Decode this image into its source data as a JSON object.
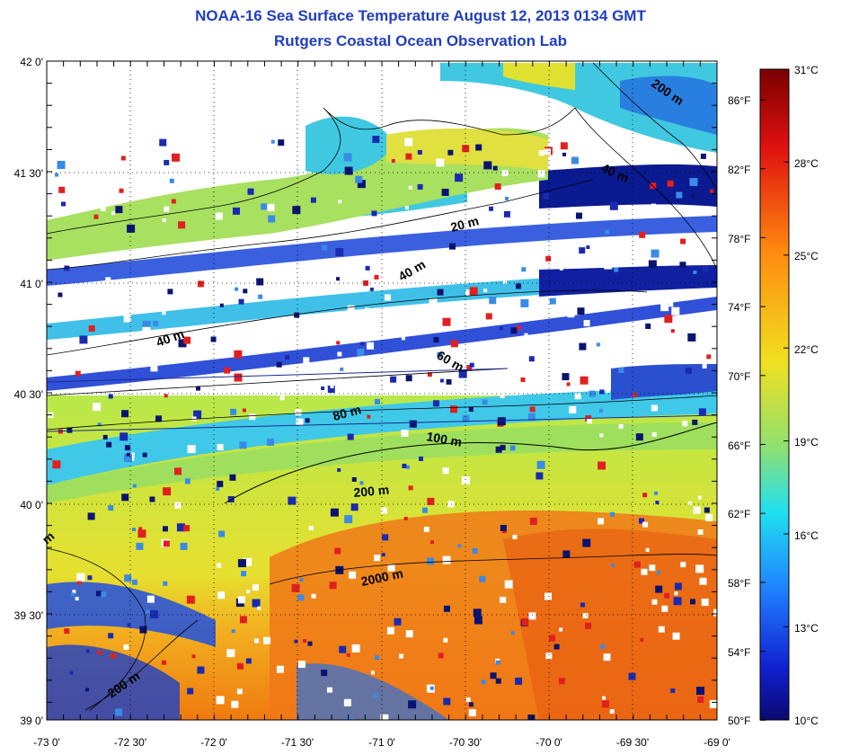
{
  "title": "NOAA-16 Sea Surface Temperature August 12, 2013 0134 GMT",
  "subtitle": "Rutgers Coastal Ocean Observation Lab",
  "axes": {
    "x_ticks": [
      "-73 0'",
      "-72 30'",
      "-72 0'",
      "-71 30'",
      "-71 0'",
      "-70 30'",
      "-70 0'",
      "-69 30'",
      "-69 0'"
    ],
    "y_ticks": [
      "42 0'",
      "41 30'",
      "41 0'",
      "40 30'",
      "40 0'",
      "39 30'",
      "39 0'"
    ]
  },
  "colorbar": {
    "celsius_labels": [
      "31°C",
      "28°C",
      "25°C",
      "22°C",
      "19°C",
      "16°C",
      "13°C",
      "10°C"
    ],
    "fahrenheit_labels": [
      "86°F",
      "82°F",
      "78°F",
      "74°F",
      "70°F",
      "66°F",
      "62°F",
      "58°F",
      "54°F",
      "50°F"
    ]
  },
  "isobaths": [
    "200 m",
    "40 m",
    "20 m",
    "40 m",
    "40 m",
    "60 m",
    "80 m",
    "100 m",
    "200 m",
    "2000 m",
    "200 m",
    "m"
  ],
  "colors": {
    "title": "#1f3fbf",
    "warm": "#f08a1c",
    "yellow": "#e8d830",
    "green": "#9be05a",
    "cyan": "#3cc8e8",
    "blue": "#1a3cc0",
    "navy": "#0a1470"
  }
}
